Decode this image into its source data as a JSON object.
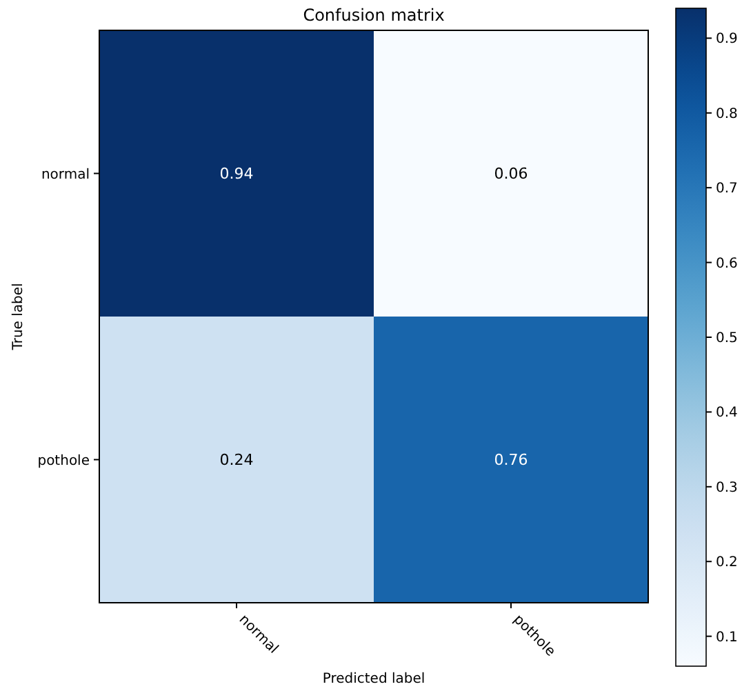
{
  "chart_data": {
    "type": "heatmap",
    "title": "Confusion matrix",
    "xlabel": "Predicted label",
    "ylabel": "True label",
    "categories": [
      "normal",
      "pothole"
    ],
    "y_categories": [
      "normal",
      "pothole"
    ],
    "cells": [
      [
        0.94,
        0.06
      ],
      [
        0.24,
        0.76
      ]
    ],
    "data_labels": true,
    "clim": [
      0.06,
      0.94
    ],
    "cticks": [
      0.1,
      0.2,
      0.3,
      0.4,
      0.5,
      0.6,
      0.7,
      0.8,
      0.9
    ]
  }
}
